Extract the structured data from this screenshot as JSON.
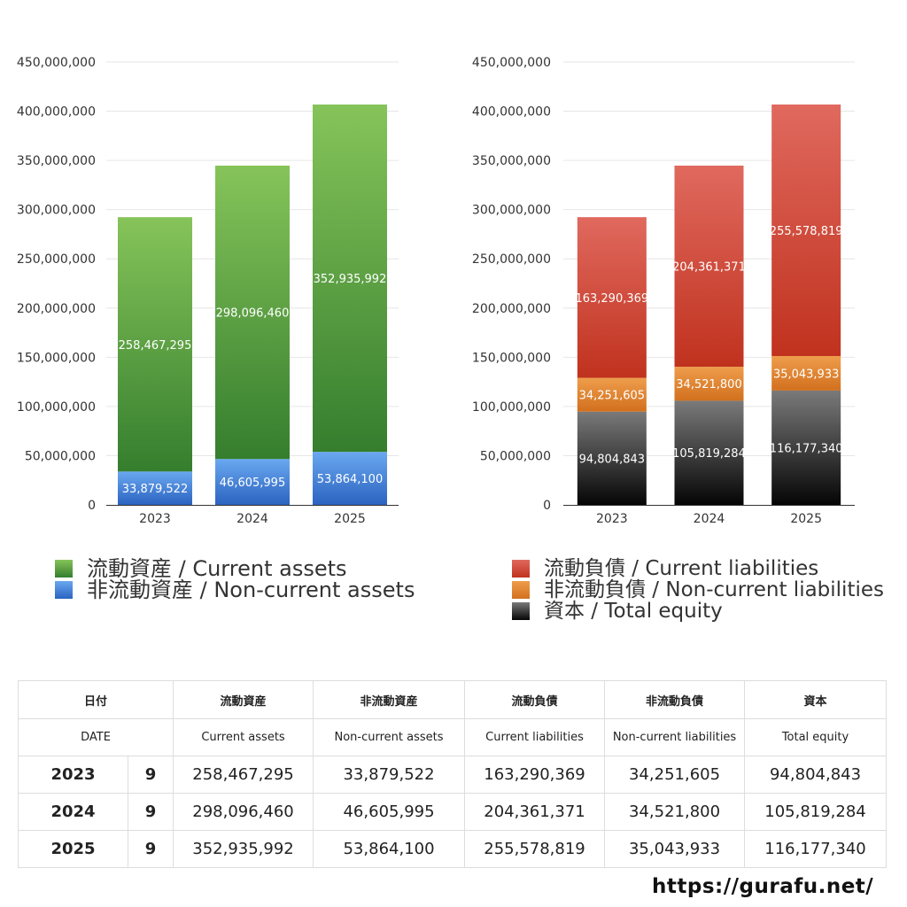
{
  "chart_data": [
    {
      "type": "bar",
      "stacked": true,
      "categories": [
        "2023",
        "2024",
        "2025"
      ],
      "ylim": [
        0,
        450000000
      ],
      "yticks": [
        "0",
        "50,000,000",
        "100,000,000",
        "150,000,000",
        "200,000,000",
        "250,000,000",
        "300,000,000",
        "350,000,000",
        "400,000,000",
        "450,000,000"
      ],
      "grid": true,
      "series": [
        {
          "name": "非流動資産 / Non-current assets",
          "values": [
            33879522,
            46605995,
            53864100
          ],
          "labels": [
            "33,879,522",
            "46,605,995",
            "53,864,100"
          ],
          "color": "#3a7bd5"
        },
        {
          "name": "流動資産 / Current assets",
          "values": [
            258467295,
            298096460,
            352935992
          ],
          "labels": [
            "258,467,295",
            "298,096,460",
            "352,935,992"
          ],
          "color": "#4a9a3a"
        }
      ]
    },
    {
      "type": "bar",
      "stacked": true,
      "categories": [
        "2023",
        "2024",
        "2025"
      ],
      "ylim": [
        0,
        450000000
      ],
      "yticks": [
        "0",
        "50,000,000",
        "100,000,000",
        "150,000,000",
        "200,000,000",
        "250,000,000",
        "300,000,000",
        "350,000,000",
        "400,000,000",
        "450,000,000"
      ],
      "grid": true,
      "series": [
        {
          "name": "資本 / Total equity",
          "values": [
            94804843,
            105819284,
            116177340
          ],
          "labels": [
            "94,804,843",
            "105,819,284",
            "116,177,340"
          ],
          "color": "#333333"
        },
        {
          "name": "非流動負債 / Non-current liabilities",
          "values": [
            34251605,
            34521800,
            35043933
          ],
          "labels": [
            "34,251,605",
            "34,521,800",
            "35,043,933"
          ],
          "color": "#e0822e"
        },
        {
          "name": "流動負債 / Current liabilities",
          "values": [
            163290369,
            204361371,
            255578819
          ],
          "labels": [
            "163,290,369",
            "204,361,371",
            "255,578,819"
          ],
          "color": "#cf4433"
        }
      ]
    }
  ],
  "legend_left": [
    {
      "label": "流動資産 / Current assets",
      "color": "#4a9a3a"
    },
    {
      "label": "非流動資産 / Non-current assets",
      "color": "#3a7bd5"
    }
  ],
  "legend_right": [
    {
      "label": "流動負債 / Current liabilities",
      "color": "#cf4433"
    },
    {
      "label": "非流動負債 / Non-current liabilities",
      "color": "#e0822e"
    },
    {
      "label": "資本 / Total equity",
      "color": "#333333"
    }
  ],
  "table": {
    "headers_jp": [
      "日付",
      "",
      "流動資産",
      "非流動資産",
      "流動負債",
      "非流動負債",
      "資本"
    ],
    "headers_en": [
      "DATE",
      "",
      "Current assets",
      "Non-current assets",
      "Current liabilities",
      "Non-current liabilities",
      "Total equity"
    ],
    "rows": [
      [
        "2023",
        "9",
        "258,467,295",
        "33,879,522",
        "163,290,369",
        "34,251,605",
        "94,804,843"
      ],
      [
        "2024",
        "9",
        "298,096,460",
        "46,605,995",
        "204,361,371",
        "34,521,800",
        "105,819,284"
      ],
      [
        "2025",
        "9",
        "352,935,992",
        "53,864,100",
        "255,578,819",
        "35,043,933",
        "116,177,340"
      ]
    ]
  },
  "source": "https://gurafu.net/"
}
